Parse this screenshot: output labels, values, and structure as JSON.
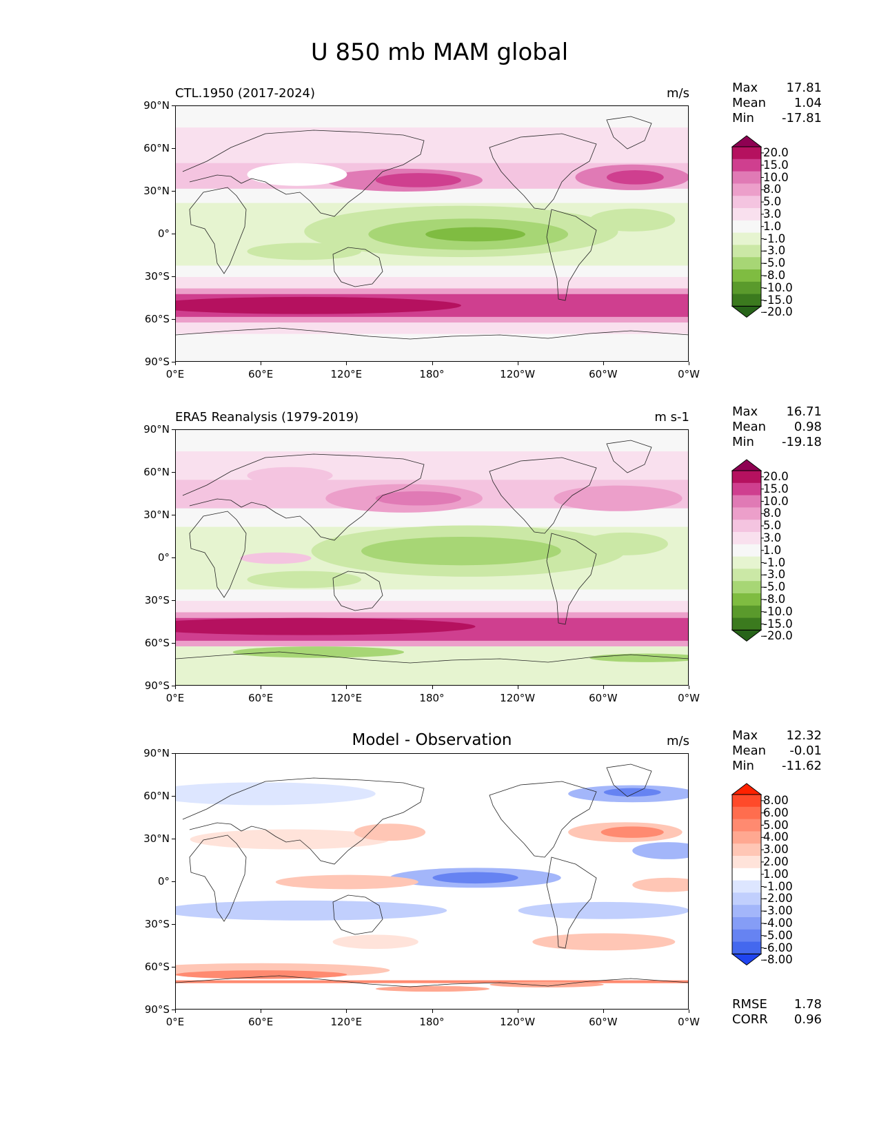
{
  "figure_title": "U 850 mb MAM global",
  "x_ticks": [
    "0°E",
    "60°E",
    "120°E",
    "180°",
    "120°W",
    "60°W",
    "0°W"
  ],
  "y_ticks": [
    "90°N",
    "60°N",
    "30°N",
    "0°",
    "30°S",
    "60°S",
    "90°S"
  ],
  "panels": [
    {
      "title": "CTL.1950 (2017-2024)",
      "units": "m/s",
      "stats": [
        {
          "label": "Max",
          "value": "17.81"
        },
        {
          "label": "Mean",
          "value": "1.04"
        },
        {
          "label": "Min",
          "value": "-17.81"
        }
      ],
      "colorbar": {
        "labels": [
          "20.0",
          "15.0",
          "10.0",
          "8.0",
          "5.0",
          "3.0",
          "1.0",
          "-1.0",
          "-3.0",
          "-5.0",
          "-8.0",
          "-10.0",
          "-15.0",
          "-20.0"
        ],
        "colors": [
          "#8e0152",
          "#b5115f",
          "#cf3f8f",
          "#e07ab5",
          "#ec9fca",
          "#f4c4e0",
          "#f9e0ee",
          "#f7f7f7",
          "#e6f4d0",
          "#cbe8a6",
          "#a7d675",
          "#7fbc41",
          "#5a9a2c",
          "#3b7a1e",
          "#276419"
        ]
      }
    },
    {
      "title": "ERA5 Reanalysis (1979-2019)",
      "units": "m s-1",
      "stats": [
        {
          "label": "Max",
          "value": "16.71"
        },
        {
          "label": "Mean",
          "value": "0.98"
        },
        {
          "label": "Min",
          "value": "-19.18"
        }
      ],
      "colorbar": {
        "labels": [
          "20.0",
          "15.0",
          "10.0",
          "8.0",
          "5.0",
          "3.0",
          "1.0",
          "-1.0",
          "-3.0",
          "-5.0",
          "-8.0",
          "-10.0",
          "-15.0",
          "-20.0"
        ],
        "colors": [
          "#8e0152",
          "#b5115f",
          "#cf3f8f",
          "#e07ab5",
          "#ec9fca",
          "#f4c4e0",
          "#f9e0ee",
          "#f7f7f7",
          "#e6f4d0",
          "#cbe8a6",
          "#a7d675",
          "#7fbc41",
          "#5a9a2c",
          "#3b7a1e",
          "#276419"
        ]
      }
    },
    {
      "title": "Model - Observation",
      "units": "m/s",
      "stats": [
        {
          "label": "Max",
          "value": "12.32"
        },
        {
          "label": "Mean",
          "value": "-0.01"
        },
        {
          "label": "Min",
          "value": "-11.62"
        }
      ],
      "extra_stats": [
        {
          "label": "RMSE",
          "value": "1.78"
        },
        {
          "label": "CORR",
          "value": "0.96"
        }
      ],
      "colorbar": {
        "labels": [
          "8.00",
          "6.00",
          "5.00",
          "4.00",
          "3.00",
          "2.00",
          "1.00",
          "-1.00",
          "-2.00",
          "-3.00",
          "-4.00",
          "-5.00",
          "-6.00",
          "-8.00"
        ],
        "colors": [
          "#ff2200",
          "#ff4a2a",
          "#ff6d4e",
          "#ff8a70",
          "#ffa891",
          "#ffc6b5",
          "#ffe3da",
          "#ffffff",
          "#dde6ff",
          "#c1cffd",
          "#a3b6fa",
          "#859df6",
          "#6683f2",
          "#4468ee",
          "#1f44f0"
        ]
      }
    }
  ],
  "chart_data": [
    {
      "type": "heatmap",
      "title": "CTL.1950 (2017-2024)",
      "suptitle": "U 850 mb MAM global",
      "units": "m/s",
      "x_ticks": [
        "0°E",
        "60°E",
        "120°E",
        "180°",
        "120°W",
        "60°W",
        "0°W"
      ],
      "y_ticks": [
        "90°N",
        "60°N",
        "30°N",
        "0°",
        "30°S",
        "60°S",
        "90°S"
      ],
      "xlim": [
        0,
        360
      ],
      "ylim": [
        -90,
        90
      ],
      "levels": [
        -20,
        -15,
        -10,
        -8,
        -5,
        -3,
        -1,
        1,
        3,
        5,
        8,
        10,
        15,
        20
      ],
      "max": 17.81,
      "mean": 1.04,
      "min": -17.81
    },
    {
      "type": "heatmap",
      "title": "ERA5 Reanalysis (1979-2019)",
      "units": "m s-1",
      "x_ticks": [
        "0°E",
        "60°E",
        "120°E",
        "180°",
        "120°W",
        "60°W",
        "0°W"
      ],
      "y_ticks": [
        "90°N",
        "60°N",
        "30°N",
        "0°",
        "30°S",
        "60°S",
        "90°S"
      ],
      "xlim": [
        0,
        360
      ],
      "ylim": [
        -90,
        90
      ],
      "levels": [
        -20,
        -15,
        -10,
        -8,
        -5,
        -3,
        -1,
        1,
        3,
        5,
        8,
        10,
        15,
        20
      ],
      "max": 16.71,
      "mean": 0.98,
      "min": -19.18
    },
    {
      "type": "heatmap",
      "title": "Model - Observation",
      "units": "m/s",
      "x_ticks": [
        "0°E",
        "60°E",
        "120°E",
        "180°",
        "120°W",
        "60°W",
        "0°W"
      ],
      "y_ticks": [
        "90°N",
        "60°N",
        "30°N",
        "0°",
        "30°S",
        "60°S",
        "90°S"
      ],
      "xlim": [
        0,
        360
      ],
      "ylim": [
        -90,
        90
      ],
      "levels": [
        -8,
        -6,
        -5,
        -4,
        -3,
        -2,
        -1,
        1,
        2,
        3,
        4,
        5,
        6,
        8
      ],
      "max": 12.32,
      "mean": -0.01,
      "min": -11.62,
      "rmse": 1.78,
      "corr": 0.96
    }
  ]
}
